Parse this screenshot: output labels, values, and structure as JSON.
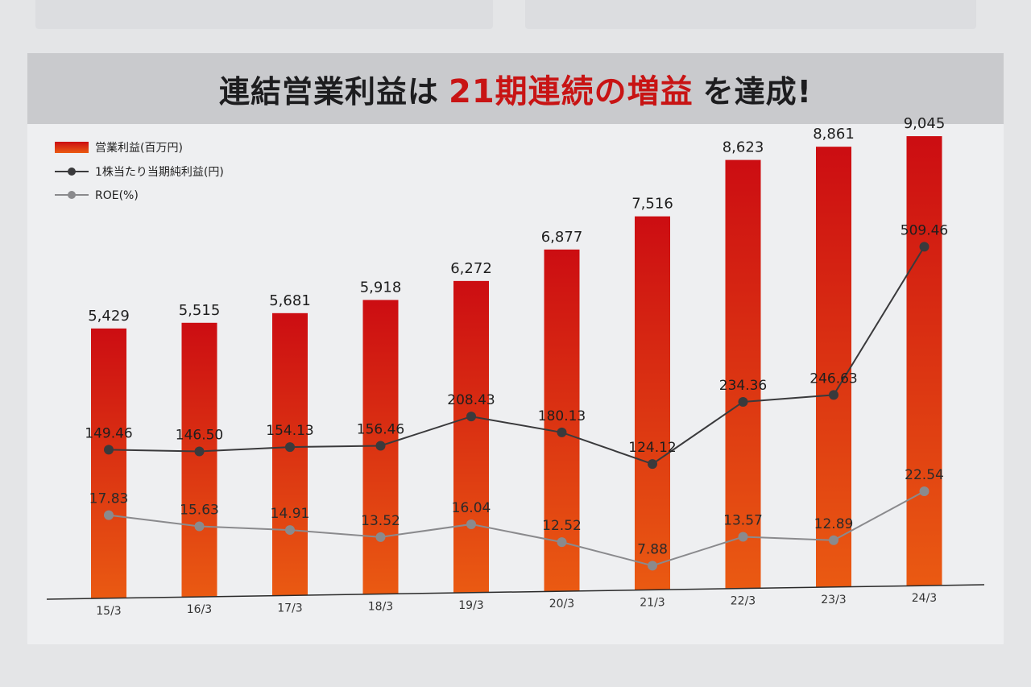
{
  "title": {
    "part1": "連結営業利益は",
    "highlight": "21期連続の増益",
    "part2": "を達成!"
  },
  "colors": {
    "bar_top": "#cc0d12",
    "bar_bottom": "#ea5a12",
    "eps_line": "#3a3a3c",
    "roe_line": "#8a8a8d",
    "highlight": "#c81414"
  },
  "chart_data": {
    "type": "bar",
    "categories": [
      "15/3",
      "16/3",
      "17/3",
      "18/3",
      "19/3",
      "20/3",
      "21/3",
      "22/3",
      "23/3",
      "24/3"
    ],
    "series": [
      {
        "name": "営業利益",
        "unit": "(百万円)",
        "type": "bar",
        "values": [
          5429,
          5515,
          5681,
          5918,
          6272,
          6877,
          7516,
          8623,
          8861,
          9045
        ],
        "labels": [
          "5,429",
          "5,515",
          "5,681",
          "5,918",
          "6,272",
          "6,877",
          "7,516",
          "8,623",
          "8,861",
          "9,045"
        ]
      },
      {
        "name": "1株当たり当期純利益",
        "unit": "(円)",
        "type": "line",
        "values": [
          149.46,
          146.5,
          154.13,
          156.46,
          208.43,
          180.13,
          124.12,
          234.36,
          246.63,
          509.46
        ],
        "labels": [
          "149.46",
          "146.50",
          "154.13",
          "156.46",
          "208.43",
          "180.13",
          "124.12",
          "234.36",
          "246.63",
          "509.46"
        ]
      },
      {
        "name": "ROE",
        "unit": "(%)",
        "type": "line",
        "values": [
          17.83,
          15.63,
          14.91,
          13.52,
          16.04,
          12.52,
          7.88,
          13.57,
          12.89,
          22.54
        ],
        "labels": [
          "17.83",
          "15.63",
          "14.91",
          "13.52",
          "16.04",
          "12.52",
          "7.88",
          "13.57",
          "12.89",
          "22.54"
        ]
      }
    ],
    "legend_position": "top-left",
    "grid": false
  }
}
